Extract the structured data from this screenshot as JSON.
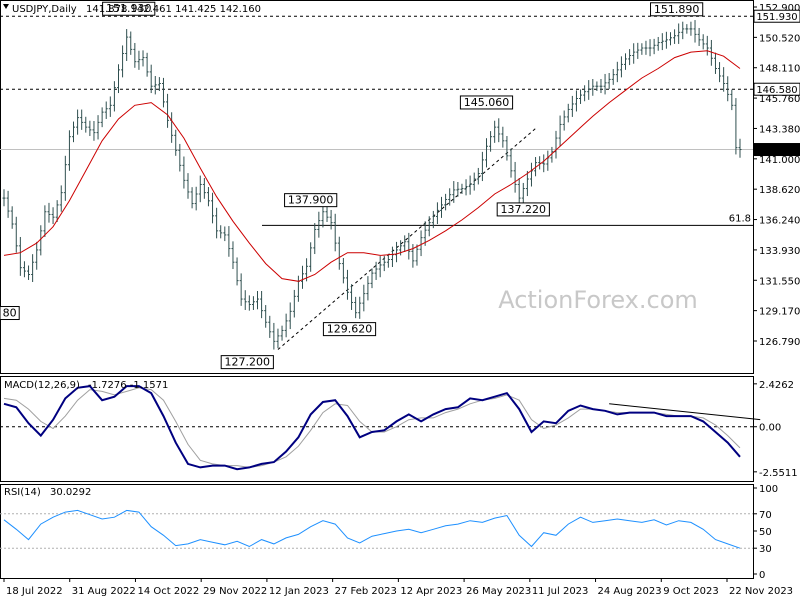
{
  "chart_data": {
    "type": "line",
    "symbol_header": "USDJPY,Daily",
    "ohlc_header": "141.878 142.461 141.425 142.160",
    "watermark": "ActionForex.com",
    "x_tick_labels": [
      "18 Jul 2022",
      "31 Aug 2022",
      "14 Oct 2022",
      "29 Nov 2022",
      "12 Jan 2023",
      "27 Feb 2023",
      "12 Apr 2023",
      "26 May 2023",
      "11 Jul 2023",
      "24 Aug 2023",
      "9 Oct 2023",
      "22 Nov 2023"
    ],
    "price_panel": {
      "ylim": [
        126.0,
        152.9
      ],
      "y_ticks": [
        "152.900",
        "150.520",
        "148.110",
        "145.760",
        "143.380",
        "141.000",
        "138.620",
        "136.240",
        "133.930",
        "131.550",
        "129.170",
        "126.790"
      ],
      "right_boxes": {
        "top": "151.930",
        "mid": "146.580",
        "last": "142.160"
      },
      "fib_label": "61.8",
      "fib_level": 136.6,
      "horizontal_levels": [
        151.93,
        146.58,
        142.16
      ],
      "annotations": [
        {
          "text": "151.930",
          "x": 61,
          "y": 151.93
        },
        {
          "text": "137.900",
          "x": 150,
          "y": 137.9
        },
        {
          "text": "127.200",
          "x": 119,
          "y": 127.2
        },
        {
          "text": "129.620",
          "x": 169,
          "y": 129.62
        },
        {
          "text": "145.060",
          "x": 236,
          "y": 145.06
        },
        {
          "text": "137.220",
          "x": 254,
          "y": 137.22
        },
        {
          "text": "151.890",
          "x": 329,
          "y": 151.89
        },
        {
          "text": "80",
          "x": 0,
          "y": 130.8
        }
      ],
      "trendline": {
        "from": [
          134,
          127.5
        ],
        "to": [
          260,
          143.7
        ]
      },
      "price_series": [
        [
          0,
          138.6
        ],
        [
          4,
          136.7
        ],
        [
          8,
          133.5
        ],
        [
          12,
          133.0
        ],
        [
          16,
          134.8
        ],
        [
          20,
          137.6
        ],
        [
          24,
          137.2
        ],
        [
          28,
          139.0
        ],
        [
          32,
          143.1
        ],
        [
          36,
          144.5
        ],
        [
          40,
          143.8
        ],
        [
          44,
          143.4
        ],
        [
          48,
          144.9
        ],
        [
          52,
          145.4
        ],
        [
          56,
          148.0
        ],
        [
          60,
          150.4
        ],
        [
          64,
          148.6
        ],
        [
          68,
          148.9
        ],
        [
          72,
          146.8
        ],
        [
          76,
          147.0
        ],
        [
          80,
          144.3
        ],
        [
          84,
          142.1
        ],
        [
          88,
          139.9
        ],
        [
          92,
          138.2
        ],
        [
          96,
          139.6
        ],
        [
          100,
          138.4
        ],
        [
          104,
          136.2
        ],
        [
          108,
          135.9
        ],
        [
          112,
          133.9
        ],
        [
          116,
          131.2
        ],
        [
          120,
          130.8
        ],
        [
          124,
          131.2
        ],
        [
          128,
          129.5
        ],
        [
          132,
          128.1
        ],
        [
          136,
          128.9
        ],
        [
          140,
          130.3
        ],
        [
          144,
          132.5
        ],
        [
          148,
          133.6
        ],
        [
          152,
          136.3
        ],
        [
          156,
          137.6
        ],
        [
          160,
          136.8
        ],
        [
          164,
          133.8
        ],
        [
          168,
          131.7
        ],
        [
          172,
          130.2
        ],
        [
          176,
          131.6
        ],
        [
          180,
          133.1
        ],
        [
          184,
          133.7
        ],
        [
          188,
          134.1
        ],
        [
          192,
          134.8
        ],
        [
          196,
          135.4
        ],
        [
          200,
          134.0
        ],
        [
          204,
          135.7
        ],
        [
          208,
          136.8
        ],
        [
          212,
          137.7
        ],
        [
          216,
          138.5
        ],
        [
          220,
          139.2
        ],
        [
          224,
          139.3
        ],
        [
          228,
          139.6
        ],
        [
          232,
          140.4
        ],
        [
          236,
          142.4
        ],
        [
          240,
          143.8
        ],
        [
          244,
          142.8
        ],
        [
          248,
          140.6
        ],
        [
          252,
          138.6
        ],
        [
          256,
          140.0
        ],
        [
          260,
          141.2
        ],
        [
          264,
          141.1
        ],
        [
          268,
          142.0
        ],
        [
          272,
          144.0
        ],
        [
          276,
          145.1
        ],
        [
          280,
          145.9
        ],
        [
          284,
          146.4
        ],
        [
          288,
          146.8
        ],
        [
          292,
          146.8
        ],
        [
          296,
          147.3
        ],
        [
          300,
          148.0
        ],
        [
          304,
          148.8
        ],
        [
          308,
          149.3
        ],
        [
          312,
          149.6
        ],
        [
          316,
          149.6
        ],
        [
          320,
          150.0
        ],
        [
          324,
          150.2
        ],
        [
          328,
          150.5
        ],
        [
          332,
          151.0
        ],
        [
          336,
          151.0
        ],
        [
          340,
          150.2
        ],
        [
          344,
          149.6
        ],
        [
          348,
          148.1
        ],
        [
          352,
          147.0
        ],
        [
          356,
          145.4
        ],
        [
          358,
          142.3
        ],
        [
          360,
          142.16
        ]
      ],
      "ma_series": [
        [
          0,
          134.4
        ],
        [
          8,
          134.6
        ],
        [
          16,
          135.3
        ],
        [
          24,
          136.5
        ],
        [
          32,
          138.4
        ],
        [
          40,
          140.6
        ],
        [
          48,
          142.8
        ],
        [
          56,
          144.4
        ],
        [
          64,
          145.4
        ],
        [
          72,
          145.6
        ],
        [
          80,
          144.7
        ],
        [
          88,
          143.0
        ],
        [
          96,
          140.8
        ],
        [
          104,
          138.7
        ],
        [
          112,
          136.9
        ],
        [
          120,
          135.3
        ],
        [
          128,
          133.8
        ],
        [
          136,
          132.7
        ],
        [
          144,
          132.5
        ],
        [
          152,
          133.0
        ],
        [
          160,
          133.9
        ],
        [
          168,
          134.6
        ],
        [
          176,
          134.6
        ],
        [
          184,
          134.4
        ],
        [
          192,
          134.5
        ],
        [
          200,
          134.9
        ],
        [
          208,
          135.5
        ],
        [
          216,
          136.2
        ],
        [
          224,
          137.0
        ],
        [
          232,
          137.9
        ],
        [
          240,
          138.9
        ],
        [
          248,
          139.6
        ],
        [
          256,
          140.4
        ],
        [
          264,
          141.3
        ],
        [
          272,
          142.4
        ],
        [
          280,
          143.5
        ],
        [
          288,
          144.6
        ],
        [
          296,
          145.6
        ],
        [
          304,
          146.5
        ],
        [
          312,
          147.4
        ],
        [
          320,
          148.1
        ],
        [
          328,
          148.9
        ],
        [
          336,
          149.3
        ],
        [
          344,
          149.4
        ],
        [
          352,
          149.0
        ],
        [
          360,
          148.1
        ]
      ]
    },
    "macd_panel": {
      "label": "MACD(12,26,9)",
      "values_text": "-1.7276 -1.1571",
      "ylim": [
        -2.9,
        2.7
      ],
      "y_ticks": [
        "2.4262",
        "0.00",
        "-2.5511"
      ],
      "zero_box": "0.00",
      "trendline": {
        "from": [
          296,
          1.3
        ],
        "to": [
          365,
          0.4
        ]
      },
      "macd_series": [
        [
          0,
          1.3
        ],
        [
          6,
          1.1
        ],
        [
          12,
          0.2
        ],
        [
          18,
          -0.5
        ],
        [
          24,
          0.4
        ],
        [
          30,
          1.6
        ],
        [
          36,
          2.2
        ],
        [
          42,
          2.3
        ],
        [
          48,
          1.5
        ],
        [
          54,
          1.7
        ],
        [
          60,
          2.3
        ],
        [
          66,
          2.3
        ],
        [
          72,
          1.9
        ],
        [
          78,
          0.6
        ],
        [
          84,
          -0.9
        ],
        [
          90,
          -2.1
        ],
        [
          96,
          -2.3
        ],
        [
          102,
          -2.2
        ],
        [
          108,
          -2.2
        ],
        [
          114,
          -2.4
        ],
        [
          120,
          -2.3
        ],
        [
          126,
          -2.1
        ],
        [
          132,
          -2.0
        ],
        [
          138,
          -1.4
        ],
        [
          144,
          -0.6
        ],
        [
          150,
          0.7
        ],
        [
          156,
          1.4
        ],
        [
          162,
          1.5
        ],
        [
          168,
          0.6
        ],
        [
          174,
          -0.6
        ],
        [
          180,
          -0.3
        ],
        [
          186,
          -0.2
        ],
        [
          192,
          0.3
        ],
        [
          198,
          0.7
        ],
        [
          204,
          0.3
        ],
        [
          210,
          0.7
        ],
        [
          216,
          1.0
        ],
        [
          222,
          1.1
        ],
        [
          228,
          1.6
        ],
        [
          234,
          1.5
        ],
        [
          240,
          1.7
        ],
        [
          246,
          1.9
        ],
        [
          252,
          1.0
        ],
        [
          258,
          -0.3
        ],
        [
          264,
          0.3
        ],
        [
          270,
          0.2
        ],
        [
          276,
          0.9
        ],
        [
          282,
          1.2
        ],
        [
          288,
          1.0
        ],
        [
          294,
          0.9
        ],
        [
          300,
          0.7
        ],
        [
          306,
          0.8
        ],
        [
          312,
          0.8
        ],
        [
          318,
          0.8
        ],
        [
          324,
          0.6
        ],
        [
          330,
          0.6
        ],
        [
          336,
          0.6
        ],
        [
          342,
          0.3
        ],
        [
          348,
          -0.3
        ],
        [
          354,
          -0.9
        ],
        [
          360,
          -1.7
        ]
      ],
      "signal_series": [
        [
          0,
          1.6
        ],
        [
          6,
          1.5
        ],
        [
          12,
          1.0
        ],
        [
          18,
          0.3
        ],
        [
          24,
          -0.1
        ],
        [
          30,
          0.6
        ],
        [
          36,
          1.5
        ],
        [
          42,
          2.1
        ],
        [
          48,
          2.0
        ],
        [
          54,
          1.8
        ],
        [
          60,
          2.0
        ],
        [
          66,
          2.2
        ],
        [
          72,
          2.1
        ],
        [
          78,
          1.5
        ],
        [
          84,
          0.3
        ],
        [
          90,
          -1.0
        ],
        [
          96,
          -1.9
        ],
        [
          102,
          -2.1
        ],
        [
          108,
          -2.2
        ],
        [
          114,
          -2.2
        ],
        [
          120,
          -2.3
        ],
        [
          126,
          -2.2
        ],
        [
          132,
          -2.0
        ],
        [
          138,
          -1.7
        ],
        [
          144,
          -1.1
        ],
        [
          150,
          -0.2
        ],
        [
          156,
          0.8
        ],
        [
          162,
          1.3
        ],
        [
          168,
          1.2
        ],
        [
          174,
          0.3
        ],
        [
          180,
          -0.3
        ],
        [
          186,
          -0.3
        ],
        [
          192,
          0.0
        ],
        [
          198,
          0.4
        ],
        [
          204,
          0.5
        ],
        [
          210,
          0.5
        ],
        [
          216,
          0.8
        ],
        [
          222,
          1.0
        ],
        [
          228,
          1.3
        ],
        [
          234,
          1.5
        ],
        [
          240,
          1.6
        ],
        [
          246,
          1.8
        ],
        [
          252,
          1.5
        ],
        [
          258,
          0.4
        ],
        [
          264,
          -0.1
        ],
        [
          270,
          0.1
        ],
        [
          276,
          0.5
        ],
        [
          282,
          1.0
        ],
        [
          288,
          1.0
        ],
        [
          294,
          0.9
        ],
        [
          300,
          0.8
        ],
        [
          306,
          0.8
        ],
        [
          312,
          0.8
        ],
        [
          318,
          0.8
        ],
        [
          324,
          0.7
        ],
        [
          330,
          0.6
        ],
        [
          336,
          0.6
        ],
        [
          342,
          0.5
        ],
        [
          348,
          0.1
        ],
        [
          354,
          -0.5
        ],
        [
          360,
          -1.2
        ]
      ]
    },
    "rsi_panel": {
      "label": "RSI(14)",
      "value_text": "30.0292",
      "ylim": [
        0,
        100
      ],
      "y_ticks": [
        "100",
        "70",
        "50",
        "30",
        "0"
      ],
      "rsi_series": [
        [
          0,
          63
        ],
        [
          6,
          52
        ],
        [
          12,
          40
        ],
        [
          18,
          58
        ],
        [
          24,
          66
        ],
        [
          30,
          72
        ],
        [
          36,
          74
        ],
        [
          42,
          69
        ],
        [
          48,
          64
        ],
        [
          54,
          66
        ],
        [
          60,
          74
        ],
        [
          66,
          72
        ],
        [
          72,
          55
        ],
        [
          78,
          45
        ],
        [
          84,
          33
        ],
        [
          90,
          35
        ],
        [
          96,
          40
        ],
        [
          102,
          37
        ],
        [
          108,
          34
        ],
        [
          114,
          38
        ],
        [
          120,
          32
        ],
        [
          126,
          40
        ],
        [
          132,
          35
        ],
        [
          138,
          42
        ],
        [
          144,
          46
        ],
        [
          150,
          55
        ],
        [
          156,
          62
        ],
        [
          162,
          58
        ],
        [
          168,
          42
        ],
        [
          174,
          36
        ],
        [
          180,
          44
        ],
        [
          186,
          47
        ],
        [
          192,
          50
        ],
        [
          198,
          52
        ],
        [
          204,
          48
        ],
        [
          210,
          52
        ],
        [
          216,
          56
        ],
        [
          222,
          58
        ],
        [
          228,
          62
        ],
        [
          234,
          60
        ],
        [
          240,
          65
        ],
        [
          246,
          68
        ],
        [
          252,
          45
        ],
        [
          258,
          32
        ],
        [
          264,
          48
        ],
        [
          270,
          45
        ],
        [
          276,
          58
        ],
        [
          282,
          66
        ],
        [
          288,
          60
        ],
        [
          294,
          62
        ],
        [
          300,
          64
        ],
        [
          306,
          62
        ],
        [
          312,
          60
        ],
        [
          318,
          63
        ],
        [
          324,
          57
        ],
        [
          330,
          62
        ],
        [
          336,
          60
        ],
        [
          342,
          52
        ],
        [
          348,
          40
        ],
        [
          354,
          35
        ],
        [
          360,
          30
        ]
      ]
    }
  }
}
